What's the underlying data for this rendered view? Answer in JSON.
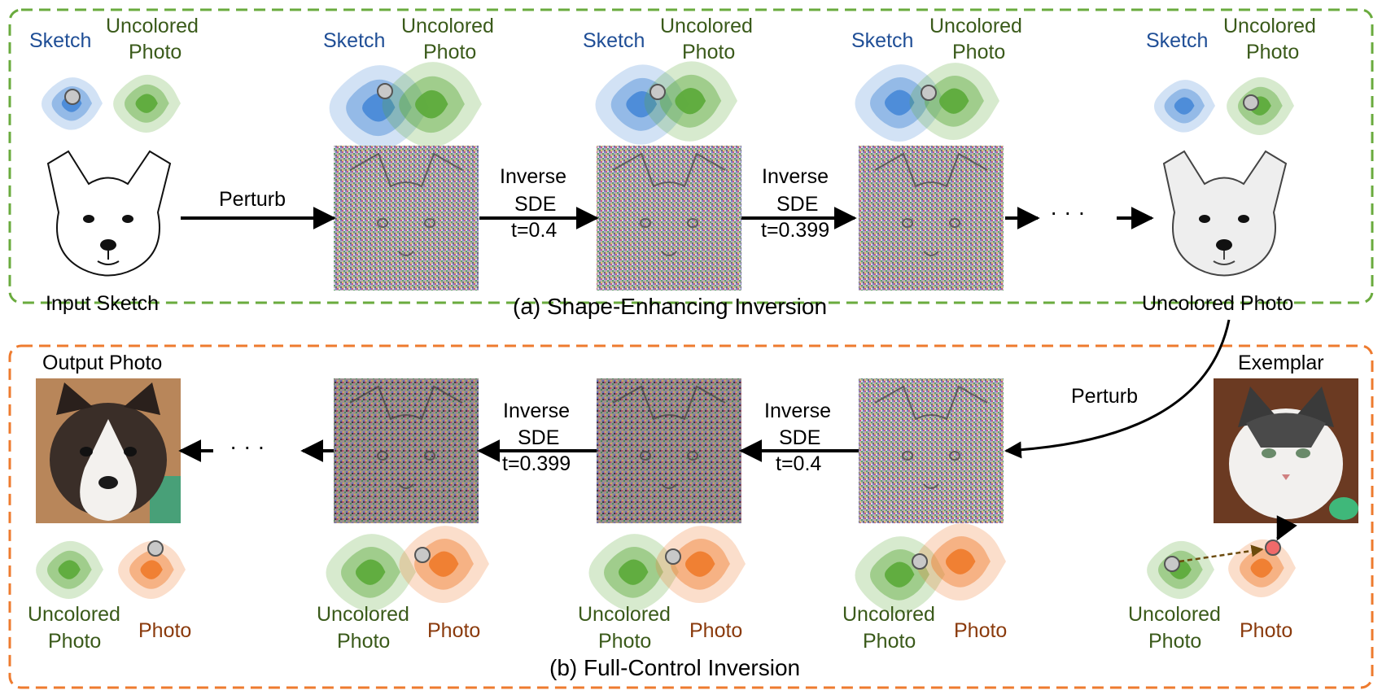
{
  "panel_a": {
    "caption": "(a) Shape-Enhancing Inversion",
    "dist_labels": {
      "sketch": "Sketch",
      "uncolored_line1": "Uncolored",
      "uncolored_line2": "Photo"
    },
    "input_label": "Input Sketch",
    "output_label": "Uncolored Photo",
    "perturb": "Perturb",
    "step1": {
      "line1": "Inverse",
      "line2": "SDE",
      "line3": "t=0.4"
    },
    "step2": {
      "line1": "Inverse",
      "line2": "SDE",
      "line3": "t=0.399"
    },
    "ellipsis": "· · ·"
  },
  "panel_b": {
    "caption": "(b) Full-Control Inversion",
    "output_label": "Output Photo",
    "exemplar_label": "Exemplar",
    "perturb": "Perturb",
    "step1": {
      "line1": "Inverse",
      "line2": "SDE",
      "line3": "t=0.4"
    },
    "step2": {
      "line1": "Inverse",
      "line2": "SDE",
      "line3": "t=0.399"
    },
    "ellipsis": "· · ·",
    "dist_labels": {
      "uncolored_line1": "Uncolored",
      "uncolored_line2": "Photo",
      "photo": "Photo"
    }
  },
  "colors": {
    "panel_a_border": "#6aab3e",
    "panel_b_border": "#ee7b2f",
    "sketch_dist": "#4a8ad8",
    "uncolored_dist": "#5eab3c",
    "photo_dist": "#ef7d2e",
    "sketch_text": "#1f4e96",
    "uncolored_text": "#3a5a1a",
    "photo_text": "#8a3a0c"
  }
}
